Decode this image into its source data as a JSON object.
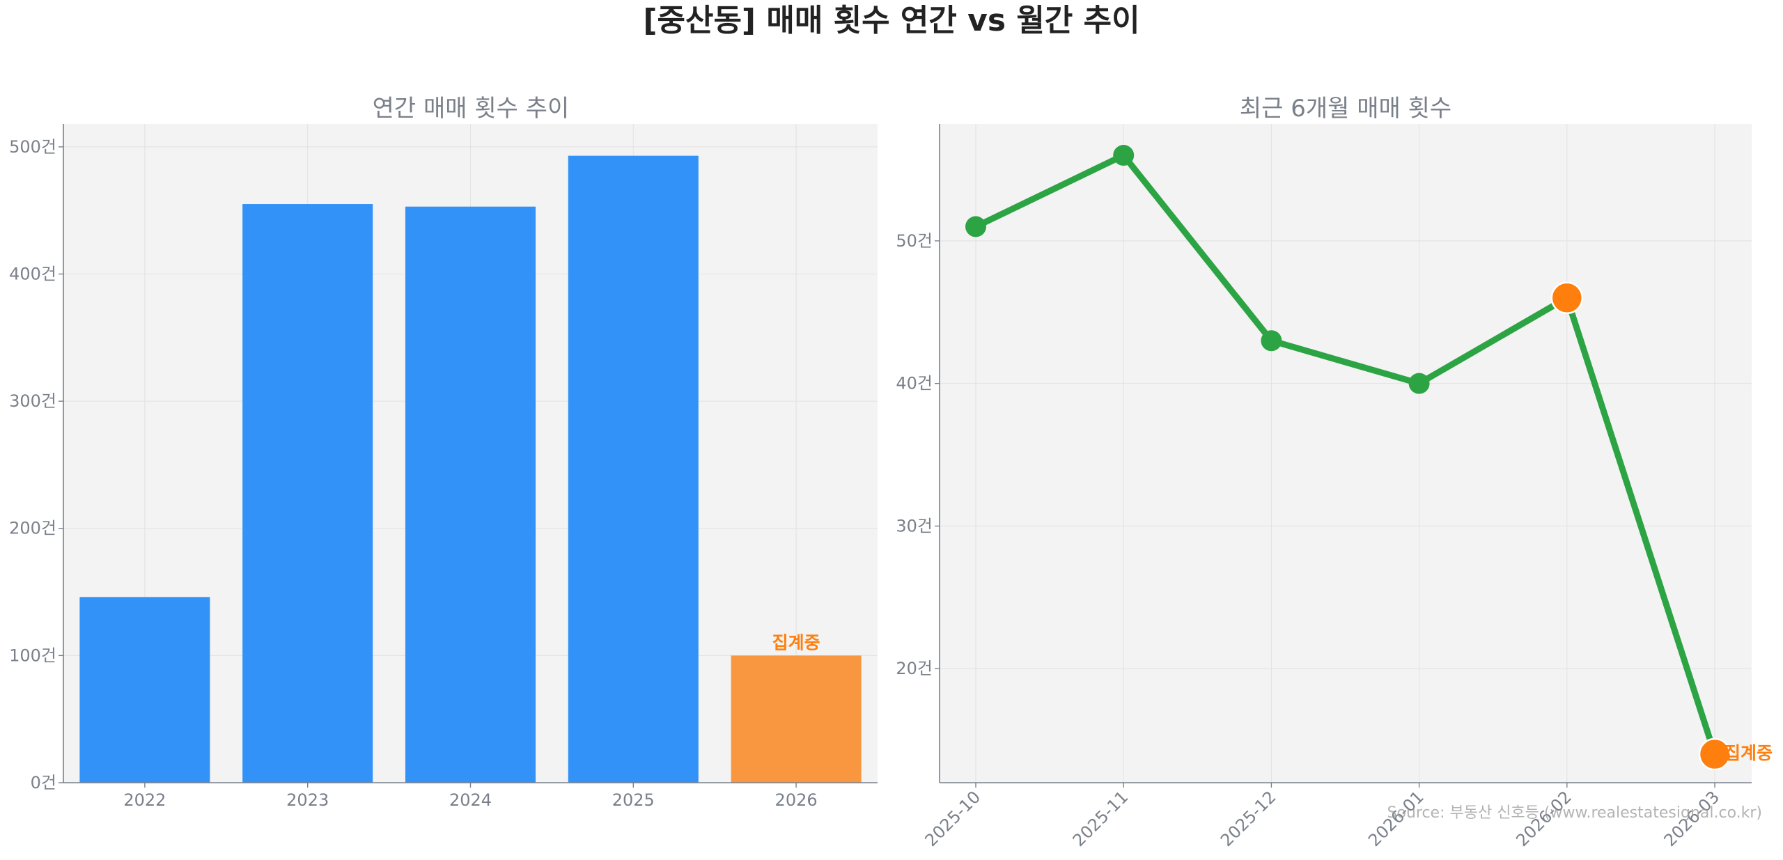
{
  "suptitle": "[중산동] 매매 횟수 연간 vs 월간 추이",
  "source": "Source: 부동산 신호등 (www.realestatesignal.co.kr)",
  "colors": {
    "bar": "#3292f7",
    "bar_highlight": "#f99740",
    "line": "#2ca444",
    "marker_highlight": "#fe7f0e",
    "highlight_text": "#fe7f0e",
    "plot_bg": "#f3f3f3",
    "grid": "#e2e2e2",
    "axis": "#7a808a"
  },
  "chart_data": [
    {
      "type": "bar",
      "title": "연간 매매 횟수 추이",
      "categories": [
        "2022",
        "2023",
        "2024",
        "2025",
        "2026"
      ],
      "values": [
        146,
        455,
        453,
        493,
        100
      ],
      "highlight_index": 4,
      "highlight_label": "집계중",
      "ylim": [
        0,
        518
      ],
      "yticks": [
        0,
        100,
        200,
        300,
        400,
        500
      ],
      "ytick_suffix": "건",
      "grid": true
    },
    {
      "type": "line",
      "title": "최근 6개월 매매 횟수",
      "categories": [
        "2025-10",
        "2025-11",
        "2025-12",
        "2026-01",
        "2026-02",
        "2026-03"
      ],
      "values": [
        51,
        56,
        43,
        40,
        46,
        14
      ],
      "highlight_indices": [
        4,
        5
      ],
      "end_label": "집계중",
      "ylim": [
        12,
        58.2
      ],
      "yticks": [
        20,
        30,
        40,
        50
      ],
      "ytick_suffix": "건",
      "grid": true
    }
  ]
}
